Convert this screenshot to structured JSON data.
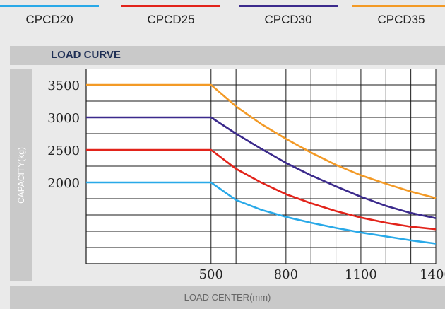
{
  "legend": {
    "items": [
      {
        "label": "CPCD20",
        "color": "#29a9e8"
      },
      {
        "label": "CPCD25",
        "color": "#e2231a"
      },
      {
        "label": "CPCD30",
        "color": "#3b2a8c"
      },
      {
        "label": "CPCD35",
        "color": "#f39a26"
      }
    ]
  },
  "section": {
    "title": "LOAD CURVE"
  },
  "chart_data": {
    "type": "line",
    "title": "LOAD CURVE",
    "xlabel": "LOAD CENTER(mm)",
    "ylabel": "CAPACITY(kg)",
    "x_ticks": [
      500,
      800,
      1100,
      1400
    ],
    "y_ticks": [
      2000,
      2500,
      3000,
      3500
    ],
    "grid": true,
    "legend_position": "top",
    "series": [
      {
        "name": "CPCD20",
        "color": "#29a9e8",
        "x": [
          0,
          500,
          600,
          700,
          800,
          900,
          1000,
          1100,
          1200,
          1300,
          1400
        ],
        "y": [
          2000,
          2000,
          1730,
          1580,
          1470,
          1380,
          1300,
          1230,
          1170,
          1110,
          1060
        ]
      },
      {
        "name": "CPCD25",
        "color": "#e2231a",
        "x": [
          0,
          500,
          600,
          700,
          800,
          900,
          1000,
          1100,
          1200,
          1300,
          1400
        ],
        "y": [
          2500,
          2500,
          2210,
          2000,
          1820,
          1680,
          1560,
          1460,
          1380,
          1320,
          1280
        ]
      },
      {
        "name": "CPCD30",
        "color": "#3b2a8c",
        "x": [
          0,
          500,
          600,
          700,
          800,
          900,
          1000,
          1100,
          1200,
          1300,
          1400
        ],
        "y": [
          3000,
          3000,
          2750,
          2520,
          2300,
          2110,
          1940,
          1780,
          1640,
          1530,
          1450
        ]
      },
      {
        "name": "CPCD35",
        "color": "#f39a26",
        "x": [
          0,
          500,
          600,
          700,
          800,
          900,
          1000,
          1100,
          1200,
          1300,
          1400
        ],
        "y": [
          3500,
          3500,
          3170,
          2900,
          2670,
          2460,
          2270,
          2110,
          1980,
          1860,
          1760
        ]
      }
    ]
  }
}
